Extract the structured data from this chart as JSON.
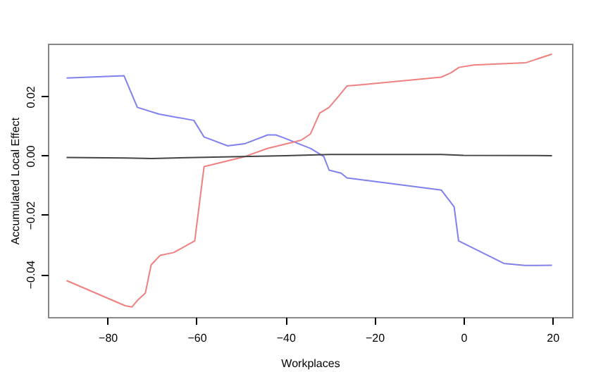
{
  "chart_data": {
    "type": "line",
    "xlabel": "Workplaces",
    "ylabel": "Accumulated Local Effect",
    "xlim": [
      -93.4,
      24.4
    ],
    "ylim": [
      -0.0545,
      0.0378
    ],
    "xticks": [
      -80,
      -60,
      -40,
      -20,
      0,
      20
    ],
    "yticks": [
      -0.04,
      -0.02,
      {
        "value": 0,
        "label": "0.00"
      },
      0.02
    ],
    "grid": false,
    "marker": "none",
    "line_style": "solid",
    "series": [
      {
        "color": "#8080ee",
        "x": [
          -89.2,
          -76.3,
          -73.3,
          -68.4,
          -60.6,
          -58.3,
          -53.0,
          -49.2,
          -44.0,
          -42.2,
          -40.7,
          -34.3,
          -31.4,
          -30.2,
          -27.5,
          -26.2,
          -5.0,
          -2.1,
          -1.1,
          9.1,
          13.8,
          19.9
        ],
        "values": [
          0.0262,
          0.027,
          0.0163,
          0.014,
          0.0119,
          0.0063,
          0.0033,
          0.004,
          0.007,
          0.007,
          0.0062,
          0.0024,
          -0.0003,
          -0.0049,
          -0.0059,
          -0.0075,
          -0.0116,
          -0.0173,
          -0.0288,
          -0.0364,
          -0.0371,
          -0.037
        ]
      },
      {
        "color": "#ee8080",
        "x": [
          -89.2,
          -76.0,
          -74.5,
          -73.1,
          -71.5,
          -70.2,
          -68.2,
          -65.1,
          -60.4,
          -58.3,
          -49.1,
          -44.1,
          -36.5,
          -34.4,
          -32.3,
          -30.2,
          -28.1,
          -26.2,
          -5.0,
          -2.9,
          -1.0,
          2.3,
          14.1,
          19.9
        ],
        "values": [
          -0.0422,
          -0.0507,
          -0.0511,
          -0.0486,
          -0.0464,
          -0.0369,
          -0.0337,
          -0.0327,
          -0.0288,
          -0.0037,
          -0.0003,
          0.0024,
          0.0052,
          0.0073,
          0.0144,
          0.0163,
          0.02,
          0.0235,
          0.0265,
          0.0279,
          0.0298,
          0.0306,
          0.0314,
          0.0343
        ]
      },
      {
        "color": "#444444",
        "x": [
          -89.2,
          -76.0,
          -70.0,
          -60.0,
          -40.0,
          -30.0,
          -5.0,
          0.0,
          19.9
        ],
        "values": [
          -0.0006,
          -0.0008,
          -0.001,
          -0.0006,
          0.0,
          0.0004,
          0.0004,
          0.0001,
          0.0
        ]
      }
    ]
  }
}
